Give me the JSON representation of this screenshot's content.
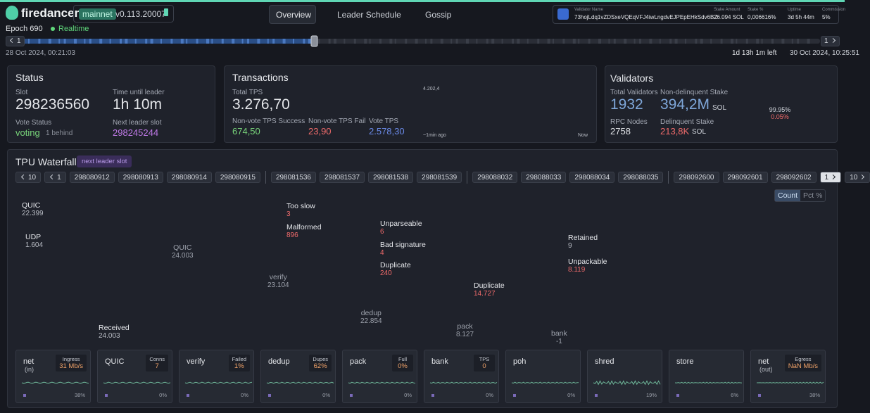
{
  "header": {
    "logo": "firedancer",
    "network": "mainnet",
    "version": "v0.113.20007",
    "nav": [
      "Overview",
      "Leader Schedule",
      "Gossip"
    ],
    "validator": [
      {
        "label": "Validator Name",
        "value": "73hojLdq1vZDSxeVQEqVFJ4iwLngdvEJPEpEHkSdv6BZ"
      },
      {
        "label": "Stake Amount",
        "value": "26.094 SOL"
      },
      {
        "label": "Stake %",
        "value": "0,006616%"
      },
      {
        "label": "Uptime",
        "value": "3d 5h 44m"
      },
      {
        "label": "Commission",
        "value": "5%"
      }
    ]
  },
  "epoch": {
    "title": "Epoch 690",
    "mode": "Realtime",
    "prev": "1",
    "next": "1",
    "start": "28 Oct 2024, 00:21:03",
    "remaining": "1d 13h 1m left",
    "end": "30 Oct 2024, 10:25:51"
  },
  "status": {
    "title": "Status",
    "slot_label": "Slot",
    "slot": "298236560",
    "leader_label": "Time until leader",
    "leader": "1h 10m",
    "vote_label": "Vote Status",
    "vote": "voting",
    "behind": "1 behind",
    "next_label": "Next leader slot",
    "next": "298245244"
  },
  "transactions": {
    "title": "Transactions",
    "total_label": "Total TPS",
    "total": "3.276,70",
    "success_label": "Non-vote TPS Success",
    "success": "674,50",
    "fail_label": "Non-vote TPS Fail",
    "fail": "23,90",
    "vote_label": "Vote TPS",
    "vote": "2.578,30",
    "chart_max": "4.202,4",
    "chart_start": "~1min ago",
    "chart_end": "Now"
  },
  "validators": {
    "title": "Validators",
    "total_label": "Total Validators",
    "total": "1932",
    "stake_label": "Non-delinquent Stake",
    "stake": "394,2M",
    "stake_unit": "SOL",
    "rpc_label": "RPC Nodes",
    "rpc": "2758",
    "delinquent_label": "Delinquent Stake",
    "delinquent": "213,8K",
    "delinquent_unit": "SOL",
    "ring_active": "99.95%",
    "ring_delinquent": "0.05%"
  },
  "tpu": {
    "title": "TPU Waterfall",
    "badge": "next leader slot",
    "back10": "10",
    "back1": "1",
    "fwd1": "1",
    "fwd10": "10",
    "slot_groups": [
      [
        "298080912",
        "298080913",
        "298080914",
        "298080915"
      ],
      [
        "298081536",
        "298081537",
        "298081538",
        "298081539"
      ],
      [
        "298088032",
        "298088033",
        "298088034",
        "298088035"
      ],
      [
        "298092600",
        "298092601",
        "298092602"
      ]
    ],
    "toggle": [
      "Count",
      "Pct %"
    ],
    "nodes": [
      {
        "label": "QUIC",
        "value": "22.399"
      },
      {
        "label": "UDP",
        "value": "1.604"
      },
      {
        "label": "QUIC",
        "value": "24.003"
      },
      {
        "label": "verify",
        "value": "23.104"
      },
      {
        "label": "dedup",
        "value": "22.854"
      },
      {
        "label": "pack",
        "value": "8.127"
      },
      {
        "label": "bank",
        "value": "-1"
      },
      {
        "label": "Received",
        "value": "24.003"
      },
      {
        "label": "Too slow",
        "value": "3"
      },
      {
        "label": "Malformed",
        "value": "896"
      },
      {
        "label": "Unparseable",
        "value": "6"
      },
      {
        "label": "Bad signature",
        "value": "4"
      },
      {
        "label": "Duplicate",
        "value": "240"
      },
      {
        "label": "Duplicate",
        "value": "14.727"
      },
      {
        "label": "Retained",
        "value": "9"
      },
      {
        "label": "Unpackable",
        "value": "8.119"
      }
    ],
    "tiles": [
      {
        "name": "net",
        "sub": "(in)",
        "metric_label": "Ingress",
        "metric": "31 Mb/s",
        "pct": "38%"
      },
      {
        "name": "QUIC",
        "metric_label": "Conns",
        "metric": "7",
        "pct": "0%"
      },
      {
        "name": "verify",
        "metric_label": "Failed",
        "metric": "1%",
        "pct": "0%"
      },
      {
        "name": "dedup",
        "metric_label": "Dupes",
        "metric": "62%",
        "pct": "0%"
      },
      {
        "name": "pack",
        "metric_label": "Full",
        "metric": "0%",
        "pct": "0%"
      },
      {
        "name": "bank",
        "metric_label": "TPS",
        "metric": "0",
        "pct": "0%"
      },
      {
        "name": "poh",
        "pct": "0%"
      },
      {
        "name": "shred",
        "pct": "19%"
      },
      {
        "name": "store",
        "pct": "6%"
      },
      {
        "name": "net",
        "sub": "(out)",
        "metric_label": "Egress",
        "metric": "NaN Mb/s",
        "pct": "38%"
      }
    ]
  }
}
